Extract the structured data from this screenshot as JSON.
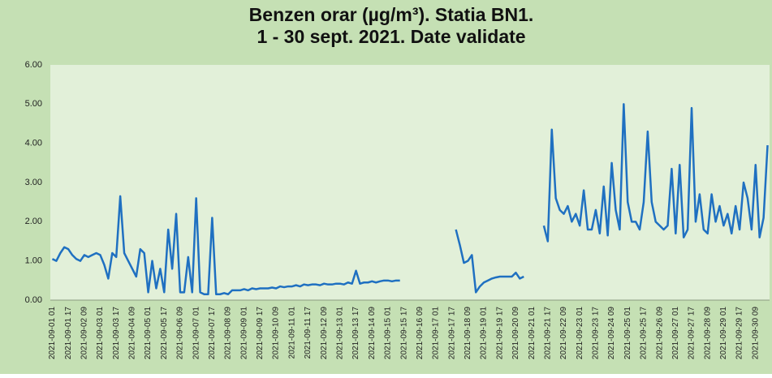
{
  "chart_data": {
    "type": "line",
    "title": [
      "Benzen orar (µg/m³). Statia BN1.",
      "1 - 30 sept. 2021.  Date validate"
    ],
    "categories": [
      "2021-09-01 01",
      null,
      null,
      null,
      "2021-09-01 17",
      null,
      null,
      null,
      "2021-09-02 09",
      null,
      null,
      null,
      "2021-09-03 01",
      null,
      null,
      null,
      "2021-09-03 17",
      null,
      null,
      null,
      "2021-09-04 09",
      null,
      null,
      null,
      "2021-09-05 01",
      null,
      null,
      null,
      "2021-09-05 17",
      null,
      null,
      null,
      "2021-09-06 09",
      null,
      null,
      null,
      "2021-09-07 01",
      null,
      null,
      null,
      "2021-09-07 17",
      null,
      null,
      null,
      "2021-09-08 09",
      null,
      null,
      null,
      "2021-09-09 01",
      null,
      null,
      null,
      "2021-09-09 17",
      null,
      null,
      null,
      "2021-09-10 09",
      null,
      null,
      null,
      "2021-09-11 01",
      null,
      null,
      null,
      "2021-09-11 17",
      null,
      null,
      null,
      "2021-09-12 09",
      null,
      null,
      null,
      "2021-09-13 01",
      null,
      null,
      null,
      "2021-09-13 17",
      null,
      null,
      null,
      "2021-09-14 09",
      null,
      null,
      null,
      "2021-09-15 01",
      null,
      null,
      null,
      "2021-09-15 17",
      null,
      null,
      null,
      "2021-09-16 09",
      null,
      null,
      null,
      "2021-09-17 01",
      null,
      null,
      null,
      "2021-09-17 17",
      null,
      null,
      null,
      "2021-09-18 09",
      null,
      null,
      null,
      "2021-09-19 01",
      null,
      null,
      null,
      "2021-09-19 17",
      null,
      null,
      null,
      "2021-09-20 09",
      null,
      null,
      null,
      "2021-09-21 01",
      null,
      null,
      null,
      "2021-09-21 17",
      null,
      null,
      null,
      "2021-09-22 09",
      null,
      null,
      null,
      "2021-09-23 01",
      null,
      null,
      null,
      "2021-09-23 17",
      null,
      null,
      null,
      "2021-09-24 09",
      null,
      null,
      null,
      "2021-09-25 01",
      null,
      null,
      null,
      "2021-09-25 17",
      null,
      null,
      null,
      "2021-09-26 09",
      null,
      null,
      null,
      "2021-09-27 01",
      null,
      null,
      null,
      "2021-09-27 17",
      null,
      null,
      null,
      "2021-09-28 09",
      null,
      null,
      null,
      "2021-09-29 01",
      null,
      null,
      null,
      "2021-09-29 17",
      null,
      null,
      null,
      "2021-09-30 09",
      null,
      null,
      null
    ],
    "series": [
      {
        "color": "#1f70c1",
        "values": [
          1.05,
          1.0,
          1.2,
          1.35,
          1.3,
          1.15,
          1.05,
          1.0,
          1.15,
          1.1,
          1.15,
          1.2,
          1.15,
          0.9,
          0.55,
          1.2,
          1.1,
          2.65,
          1.2,
          1.0,
          0.8,
          0.6,
          1.3,
          1.2,
          0.2,
          1.0,
          0.3,
          0.8,
          0.2,
          1.8,
          0.8,
          2.2,
          0.2,
          0.2,
          1.1,
          0.2,
          2.6,
          0.2,
          0.15,
          0.15,
          2.1,
          0.15,
          0.15,
          0.18,
          0.15,
          0.25,
          0.25,
          0.25,
          0.28,
          0.25,
          0.3,
          0.28,
          0.3,
          0.3,
          0.3,
          0.32,
          0.3,
          0.35,
          0.33,
          0.35,
          0.35,
          0.38,
          0.35,
          0.4,
          0.38,
          0.4,
          0.4,
          0.38,
          0.42,
          0.4,
          0.4,
          0.42,
          0.42,
          0.4,
          0.45,
          0.42,
          0.75,
          0.42,
          0.45,
          0.45,
          0.48,
          0.45,
          0.48,
          0.5,
          0.5,
          0.48,
          0.5,
          0.5,
          null,
          null,
          null,
          null,
          null,
          null,
          null,
          null,
          null,
          null,
          null,
          null,
          null,
          1.8,
          1.4,
          0.95,
          1.0,
          1.15,
          0.2,
          0.35,
          0.45,
          0.5,
          0.55,
          0.58,
          0.6,
          0.6,
          0.6,
          0.6,
          0.7,
          0.55,
          0.6,
          null,
          null,
          null,
          null,
          1.9,
          1.5,
          4.35,
          2.6,
          2.3,
          2.2,
          2.4,
          2.0,
          2.2,
          1.9,
          2.8,
          1.8,
          1.8,
          2.3,
          1.7,
          2.9,
          1.65,
          3.5,
          2.3,
          1.8,
          5.0,
          2.5,
          2.0,
          2.0,
          1.8,
          2.5,
          4.3,
          2.5,
          2.0,
          1.9,
          1.8,
          1.9,
          3.35,
          1.7,
          3.45,
          1.6,
          1.8,
          4.9,
          2.0,
          2.7,
          1.8,
          1.7,
          2.7,
          2.0,
          2.4,
          1.9,
          2.2,
          1.7,
          2.4,
          1.8,
          3.0,
          2.6,
          1.8,
          3.45,
          1.6,
          2.1,
          3.95
        ]
      }
    ],
    "ylim": [
      0,
      6
    ],
    "yticks": [
      {
        "value": 0,
        "label": "0.00"
      },
      {
        "value": 1,
        "label": "1.00"
      },
      {
        "value": 2,
        "label": "2.00"
      },
      {
        "value": 3,
        "label": "3.00"
      },
      {
        "value": 4,
        "label": "4.00"
      },
      {
        "value": 5,
        "label": "5.00"
      },
      {
        "value": 6,
        "label": "6.00"
      }
    ],
    "grid": false
  }
}
